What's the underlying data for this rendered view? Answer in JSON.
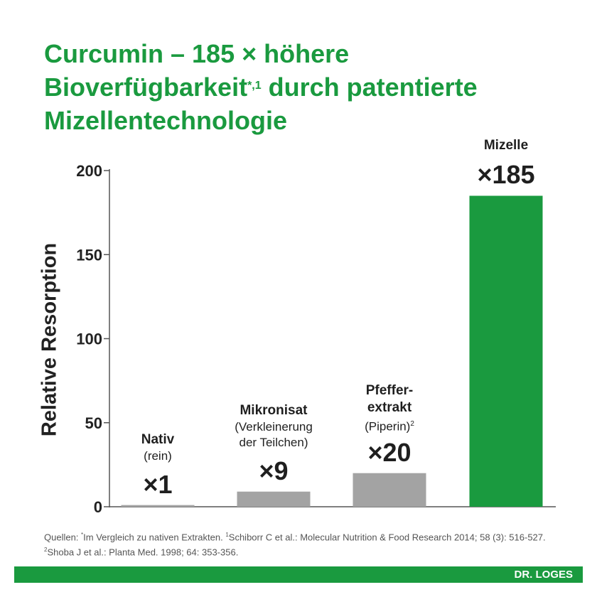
{
  "title": {
    "line1": "Curcumin – 185 × höhere",
    "line2_text": "Bioverfügbarkeit",
    "line2_sup": "*,1",
    "line2_rest": " durch patentierte",
    "line3": "Mizellentechnologie"
  },
  "chart_data": {
    "type": "bar",
    "title": "Curcumin – 185 × höhere Bioverfügbarkeit*,1 durch patentierte Mizellentechnologie",
    "ylabel": "Relative Resorption",
    "xlabel": "",
    "ylim": [
      0,
      200
    ],
    "yticks": [
      "0",
      "50",
      "100",
      "150",
      "200"
    ],
    "grid": false,
    "categories": [
      {
        "name": "Nativ",
        "sub": "(rein)",
        "sub_sup": "",
        "multiplier": "×1",
        "value": 1
      },
      {
        "name": "Mikronisat",
        "sub": "(Verkleinerung der Teilchen)",
        "sub_sup": "",
        "multiplier": "×9",
        "value": 9
      },
      {
        "name": "Pfeffer-extrakt",
        "sub": "(Piperin)",
        "sub_sup": "2",
        "multiplier": "×20",
        "value": 20
      },
      {
        "name": "Mizelle",
        "sub": "",
        "sub_sup": "",
        "multiplier": "×185",
        "value": 185
      }
    ],
    "colors": {
      "bar_grey": "#a3a3a3",
      "bar_green": "#1a9a3f",
      "title_green": "#1a9a3f"
    }
  },
  "footnote": {
    "prefix": "Quellen: ",
    "sup_star": "*",
    "text1": "Im Vergleich zu nativen Extrakten. ",
    "sup1": "1",
    "text2": "Schiborr C et al.: Molecular Nutrition & Food Research 2014; 58 (3): 516-527. ",
    "sup2": "2",
    "text3": "Shoba J et al.: Planta Med. 1998; 64: 353-356."
  },
  "brand": "DR. LOGES"
}
